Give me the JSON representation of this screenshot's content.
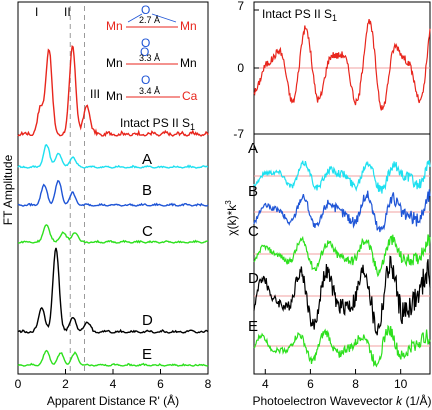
{
  "colors": {
    "red": "#e8261d",
    "cyan": "#1ee0f0",
    "blue": "#1f55d6",
    "green": "#2ee01e",
    "black": "#000000",
    "grid_pink": "#f2a0a0",
    "dash": "#9a9a9a"
  },
  "chart_data": [
    {
      "type": "line",
      "panel": "left",
      "ylabel": "FT Amplitude",
      "xlabel": "Apparent Distance R' (Å)",
      "xlim": [
        0,
        8
      ],
      "x_ticks": [
        "0",
        "2",
        "4",
        "6",
        "8"
      ],
      "peak_labels": [
        "I",
        "II",
        "III"
      ],
      "dashed_lines_x": [
        2.2,
        2.8
      ],
      "title": "Intact PS II S",
      "title_sub": "1",
      "diagram": [
        {
          "left": "Mn",
          "bridge": "O",
          "right": "Mn",
          "distance": "2.7 Å"
        },
        {
          "left": "Mn",
          "bridge": "O",
          "right": "Mn",
          "distance": "3.3 Å"
        },
        {
          "left": "Mn",
          "bridge": "O",
          "right": "Ca",
          "distance": "3.4 Å"
        }
      ],
      "series": [
        {
          "name": "",
          "label": "",
          "color": "red",
          "peaks": [
            [
              1.3,
              1.0
            ],
            [
              2.3,
              1.05
            ],
            [
              2.9,
              0.35
            ],
            [
              0.95,
              0.3
            ]
          ]
        },
        {
          "name": "",
          "label": "A",
          "color": "cyan",
          "peaks": [
            [
              1.2,
              0.55
            ],
            [
              1.7,
              0.35
            ],
            [
              2.3,
              0.25
            ]
          ]
        },
        {
          "name": "",
          "label": "B",
          "color": "blue",
          "peaks": [
            [
              1.1,
              0.5
            ],
            [
              1.7,
              0.6
            ],
            [
              2.3,
              0.3
            ]
          ]
        },
        {
          "name": "",
          "label": "C",
          "color": "green",
          "peaks": [
            [
              1.2,
              0.45
            ],
            [
              1.9,
              0.25
            ],
            [
              2.4,
              0.25
            ]
          ]
        },
        {
          "name": "",
          "label": "D",
          "color": "black",
          "peaks": [
            [
              1.0,
              0.5
            ],
            [
              1.6,
              1.7
            ],
            [
              2.3,
              0.3
            ],
            [
              2.9,
              0.2
            ]
          ]
        },
        {
          "name": "",
          "label": "E",
          "color": "green",
          "peaks": [
            [
              1.2,
              0.35
            ],
            [
              1.8,
              0.3
            ],
            [
              2.4,
              0.3
            ]
          ]
        }
      ]
    },
    {
      "type": "line",
      "panel": "right",
      "ylabel": "χ(k)*k",
      "ylabel_sup": "3",
      "xlabel": "Photoelectron Wavevector",
      "xlabel_var": "k",
      "xlabel_unit": "(1/Å)",
      "xlim": [
        3.5,
        11.3
      ],
      "x_ticks": [
        "4",
        "6",
        "8",
        "10"
      ],
      "y_ticks_top": [
        "7",
        "0",
        "-7"
      ],
      "title": "Intact PS II S",
      "title_sub": "1",
      "series": [
        {
          "name": "",
          "label": "",
          "color": "red"
        },
        {
          "name": "",
          "label": "A",
          "color": "cyan"
        },
        {
          "name": "",
          "label": "B",
          "color": "blue"
        },
        {
          "name": "",
          "label": "C",
          "color": "green"
        },
        {
          "name": "",
          "label": "D",
          "color": "black"
        },
        {
          "name": "",
          "label": "E",
          "color": "green"
        }
      ]
    }
  ]
}
